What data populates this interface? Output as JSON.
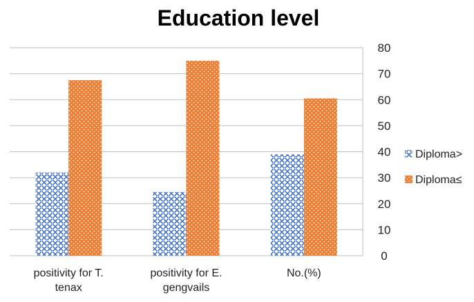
{
  "chart_data": {
    "type": "bar",
    "title": "Education level",
    "categories": [
      [
        "positivity for T.",
        "tenax"
      ],
      [
        "positivity for E.",
        "gengvails"
      ],
      [
        "No.(%)"
      ]
    ],
    "series": [
      {
        "name": "Diploma>",
        "values": [
          32,
          24.5,
          39
        ],
        "color": "#4472c4",
        "pattern": "blue-crosshatch"
      },
      {
        "name": "Diploma≤",
        "values": [
          67.5,
          75,
          60.5
        ],
        "color": "#ed7d31",
        "pattern": "orange-dots"
      }
    ],
    "ylim": [
      0,
      80
    ],
    "yticks": [
      0,
      10,
      20,
      30,
      40,
      50,
      60,
      70,
      80
    ],
    "y_axis_side": "right",
    "grid": true,
    "legend": "right"
  }
}
